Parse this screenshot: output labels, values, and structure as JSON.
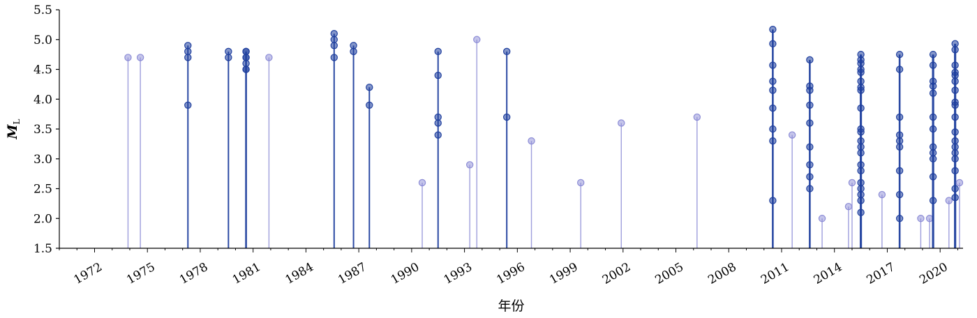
{
  "chart_data": {
    "type": "scatter",
    "subtype": "stem",
    "xlabel": "年份",
    "ylabel": {
      "main": "M",
      "sub": "L"
    },
    "xlim": [
      1970,
      2021.3
    ],
    "ylim": [
      1.5,
      5.5
    ],
    "xticks": [
      "1972",
      "1975",
      "1978",
      "1981",
      "1984",
      "1987",
      "1990",
      "1993",
      "1996",
      "1999",
      "2002",
      "2005",
      "2008",
      "2011",
      "2014",
      "2017",
      "2020"
    ],
    "yticks": [
      "1.5",
      "2.0",
      "2.5",
      "3.0",
      "3.5",
      "4.0",
      "4.5",
      "5.0",
      "5.5"
    ],
    "grid": false,
    "colors": {
      "light": "#8c8cd6",
      "dark": "#1f3f9e"
    },
    "events": [
      {
        "year": 1973.9,
        "magnitudes": [
          4.7
        ]
      },
      {
        "year": 1974.6,
        "magnitudes": [
          4.7
        ]
      },
      {
        "year": 1977.3,
        "magnitudes": [
          3.9,
          4.7,
          4.8,
          4.9
        ]
      },
      {
        "year": 1979.6,
        "magnitudes": [
          4.7,
          4.8
        ]
      },
      {
        "year": 1980.6,
        "magnitudes": [
          4.5,
          4.5,
          4.6,
          4.7,
          4.7,
          4.8,
          4.8
        ]
      },
      {
        "year": 1981.9,
        "magnitudes": [
          4.7
        ]
      },
      {
        "year": 1985.6,
        "magnitudes": [
          4.7,
          4.9,
          5.0,
          5.1
        ]
      },
      {
        "year": 1986.7,
        "magnitudes": [
          4.8,
          4.9
        ]
      },
      {
        "year": 1987.6,
        "magnitudes": [
          3.9,
          4.2
        ]
      },
      {
        "year": 1990.6,
        "magnitudes": [
          2.6
        ]
      },
      {
        "year": 1991.5,
        "magnitudes": [
          3.4,
          3.6,
          3.7,
          4.4,
          4.8
        ]
      },
      {
        "year": 1993.3,
        "magnitudes": [
          2.9
        ]
      },
      {
        "year": 1993.7,
        "magnitudes": [
          5.0
        ]
      },
      {
        "year": 1995.4,
        "magnitudes": [
          3.7,
          4.8
        ]
      },
      {
        "year": 1996.8,
        "magnitudes": [
          3.3
        ]
      },
      {
        "year": 1999.6,
        "magnitudes": [
          2.6
        ]
      },
      {
        "year": 2001.9,
        "magnitudes": [
          3.6
        ]
      },
      {
        "year": 2006.2,
        "magnitudes": [
          3.7
        ]
      },
      {
        "year": 2010.5,
        "magnitudes": [
          2.3,
          3.3,
          3.5,
          3.85,
          4.15,
          4.3,
          4.57,
          4.93,
          5.17
        ]
      },
      {
        "year": 2011.6,
        "magnitudes": [
          3.4
        ]
      },
      {
        "year": 2012.6,
        "magnitudes": [
          2.5,
          2.7,
          2.9,
          3.2,
          3.6,
          3.9,
          4.15,
          4.22,
          4.66
        ]
      },
      {
        "year": 2013.3,
        "magnitudes": [
          2.0
        ]
      },
      {
        "year": 2014.8,
        "magnitudes": [
          2.2
        ]
      },
      {
        "year": 2015.0,
        "magnitudes": [
          2.6
        ]
      },
      {
        "year": 2015.5,
        "magnitudes": [
          2.1,
          2.3,
          2.4,
          2.5,
          2.6,
          2.8,
          2.9,
          3.1,
          3.2,
          3.3,
          3.45,
          3.5,
          3.85,
          4.15,
          4.2,
          4.3,
          4.45,
          4.5,
          4.6,
          4.66,
          4.75
        ]
      },
      {
        "year": 2016.7,
        "magnitudes": [
          2.4
        ]
      },
      {
        "year": 2017.7,
        "magnitudes": [
          2.0,
          2.4,
          2.8,
          3.2,
          3.3,
          3.4,
          3.7,
          4.5,
          4.75
        ]
      },
      {
        "year": 2018.9,
        "magnitudes": [
          2.0
        ]
      },
      {
        "year": 2019.4,
        "magnitudes": [
          2.0
        ]
      },
      {
        "year": 2019.6,
        "magnitudes": [
          2.3,
          2.7,
          3.0,
          3.1,
          3.2,
          3.5,
          3.7,
          4.1,
          4.22,
          4.3,
          4.57,
          4.75
        ]
      },
      {
        "year": 2020.5,
        "magnitudes": [
          2.3
        ]
      },
      {
        "year": 2020.85,
        "magnitudes": [
          2.35,
          2.5,
          2.8,
          3.0,
          3.1,
          3.2,
          3.3,
          3.45,
          3.7,
          3.9,
          3.95,
          4.15,
          4.3,
          4.4,
          4.45,
          4.57,
          4.83,
          4.93
        ]
      },
      {
        "year": 2021.1,
        "magnitudes": [
          2.6
        ]
      }
    ]
  }
}
